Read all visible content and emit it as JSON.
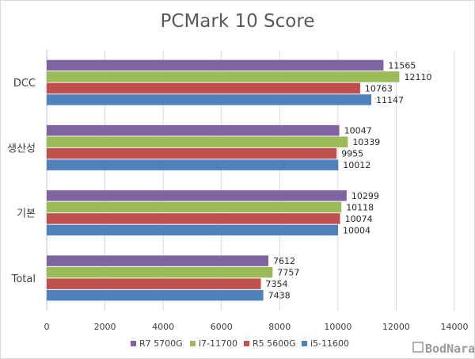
{
  "chart_data": {
    "type": "bar",
    "orientation": "horizontal",
    "title": "PCMark 10 Score",
    "categories": [
      "DCC",
      "생산성",
      "기본",
      "Total"
    ],
    "series": [
      {
        "name": "R7 5700G",
        "color": "#8064a2",
        "values": [
          11565,
          10047,
          10299,
          7612
        ]
      },
      {
        "name": "i7-11700",
        "color": "#9bbb59",
        "values": [
          12110,
          10339,
          10118,
          7757
        ]
      },
      {
        "name": "R5 5600G",
        "color": "#c0504d",
        "values": [
          10763,
          9955,
          10074,
          7354
        ]
      },
      {
        "name": "i5-11600",
        "color": "#4f81bd",
        "values": [
          11147,
          10012,
          10004,
          7438
        ]
      }
    ],
    "xlim": [
      0,
      14000
    ],
    "xticks": [
      0,
      2000,
      4000,
      6000,
      8000,
      10000,
      12000,
      14000
    ],
    "grid": true,
    "legend": "bottom"
  },
  "watermark": "BodNara"
}
